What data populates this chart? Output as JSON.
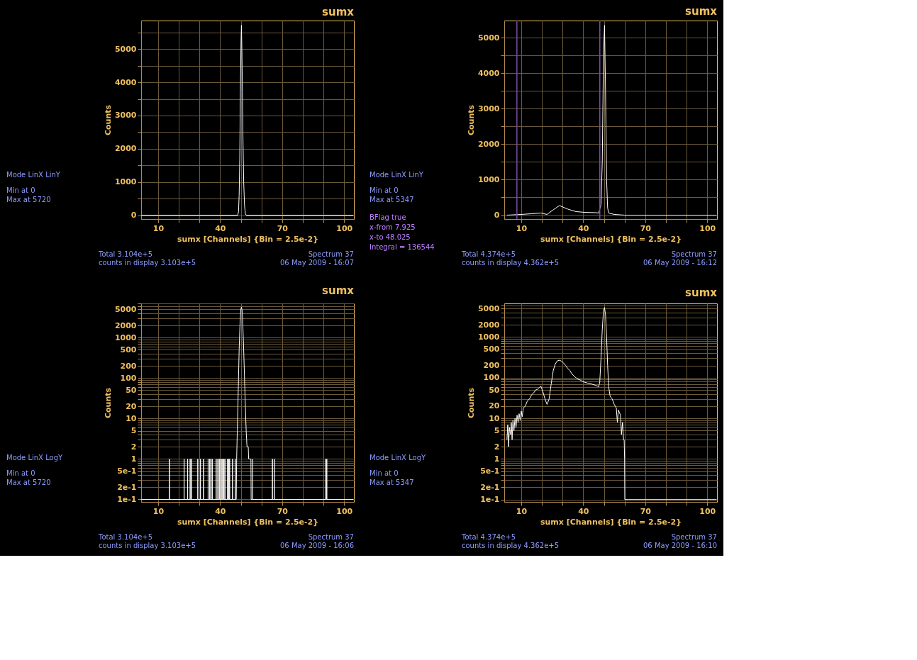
{
  "chart_data": [
    {
      "type": "line",
      "title": "sumx",
      "xlabel": "sumx [Channels] {Bin = 2.5e-2}",
      "ylabel": "Counts",
      "xlim": [
        1.8,
        104.7
      ],
      "xticks": [
        10,
        {
          "value": 20,
          "label": null
        },
        {
          "value": 30,
          "label": null
        },
        40,
        {
          "value": 50,
          "label": null
        },
        {
          "value": 60,
          "label": null
        },
        70,
        {
          "value": 80,
          "label": null
        },
        {
          "value": 90,
          "label": null
        },
        100
      ],
      "ylim": [
        -117,
        5860
      ],
      "yticks": [
        0,
        {
          "value": 500,
          "label": null
        },
        1000,
        {
          "value": 1500,
          "label": null
        },
        2000,
        {
          "value": 2500,
          "label": null
        },
        3000,
        {
          "value": 3500,
          "label": null
        },
        4000,
        {
          "value": 4500,
          "label": null
        },
        5000,
        {
          "value": 5500,
          "label": null
        }
      ],
      "grid": true,
      "marker": "none",
      "line_style": "solid",
      "series": [
        {
          "color": "#ffffff",
          "x": [
            1.9,
            48.5,
            48.9,
            49.2,
            49.5,
            49.8,
            50.1,
            50.3,
            50.5,
            50.8,
            51.1,
            51.4,
            51.8,
            52.2,
            52.6,
            104.5
          ],
          "values": [
            0,
            0,
            100,
            600,
            1700,
            3700,
            5200,
            5720,
            5100,
            3700,
            2100,
            1000,
            300,
            50,
            0,
            0
          ]
        }
      ],
      "annotations": [
        "Mode LinX LinY",
        "Min at 0",
        "Max at 5720",
        "Total 3.104e+5",
        "counts in display 3.103e+5",
        "Spectrum 37",
        "06 May 2009 - 16:07"
      ]
    },
    {
      "type": "line",
      "title": "sumx",
      "xlabel": "sumx [Channels] {Bin = 2.5e-2}",
      "ylabel": "Counts",
      "xlim": [
        1.8,
        104.7
      ],
      "xticks": [
        10,
        {
          "value": 20,
          "label": null
        },
        {
          "value": 30,
          "label": null
        },
        40,
        {
          "value": 50,
          "label": null
        },
        {
          "value": 60,
          "label": null
        },
        70,
        {
          "value": 80,
          "label": null
        },
        {
          "value": 90,
          "label": null
        },
        100
      ],
      "ylim": [
        -110,
        5480
      ],
      "yticks": [
        0,
        {
          "value": 500,
          "label": null
        },
        1000,
        {
          "value": 1500,
          "label": null
        },
        2000,
        {
          "value": 2500,
          "label": null
        },
        3000,
        {
          "value": 3500,
          "label": null
        },
        4000,
        {
          "value": 4500,
          "label": null
        },
        5000
      ],
      "grid": true,
      "marker": "none",
      "line_style": "solid",
      "ref_lines": [
        {
          "axis": "x",
          "value": 7.925,
          "color": "#7a4aa0"
        },
        {
          "axis": "x",
          "value": 48.025,
          "color": "#7a4aa0"
        }
      ],
      "series": [
        {
          "color": "#ffffff",
          "x": [
            3.1,
            10,
            15,
            19.5,
            22.5,
            25.5,
            28.5,
            32.5,
            36.5,
            40.5,
            46,
            47.5,
            48.6,
            49.2,
            49.8,
            50.3,
            50.8,
            51.3,
            51.8,
            52.3,
            55,
            60,
            60.1,
            104.5
          ],
          "values": [
            0,
            20,
            40,
            60,
            20,
            150,
            270,
            170,
            100,
            80,
            70,
            60,
            300,
            1500,
            4500,
            5347,
            3500,
            1000,
            200,
            60,
            20,
            0,
            0,
            0
          ]
        }
      ],
      "annotations": [
        "Mode LinX LinY",
        "Min at 0",
        "Max at 5347",
        "Total 4.374e+5",
        "counts in display 4.362e+5",
        "Spectrum 37",
        "06 May 2009 - 16:12",
        "BFlag true",
        "x-from 7.925",
        "x-to 48.025",
        "Integral = 136544"
      ]
    },
    {
      "type": "line",
      "title": "sumx",
      "xlabel": "sumx [Channels] {Bin = 2.5e-2}",
      "ylabel": "Counts",
      "log": "y",
      "xlim": [
        1.8,
        104.7
      ],
      "xticks": [
        10,
        {
          "value": 20,
          "label": null
        },
        {
          "value": 30,
          "label": null
        },
        40,
        {
          "value": 50,
          "label": null
        },
        {
          "value": 60,
          "label": null
        },
        70,
        {
          "value": 80,
          "label": null
        },
        {
          "value": 90,
          "label": null
        },
        100
      ],
      "ylim": [
        0.0866,
        7020
      ],
      "yticks": [
        {
          "value": 0.1,
          "label": "1e-1"
        },
        {
          "value": 0.2,
          "label": "2e-1"
        },
        {
          "value": 0.3,
          "label": null
        },
        {
          "value": 0.4,
          "label": null
        },
        {
          "value": 0.5,
          "label": "5e-1"
        },
        {
          "value": 0.6,
          "label": null
        },
        {
          "value": 0.7,
          "label": null
        },
        {
          "value": 0.8,
          "label": null
        },
        {
          "value": 0.9,
          "label": null
        },
        1,
        2,
        {
          "value": 3,
          "label": null
        },
        {
          "value": 4,
          "label": null
        },
        5,
        {
          "value": 6,
          "label": null
        },
        {
          "value": 7,
          "label": null
        },
        {
          "value": 8,
          "label": null
        },
        {
          "value": 9,
          "label": null
        },
        10,
        20,
        {
          "value": 30,
          "label": null
        },
        {
          "value": 40,
          "label": null
        },
        50,
        {
          "value": 60,
          "label": null
        },
        {
          "value": 70,
          "label": null
        },
        {
          "value": 80,
          "label": null
        },
        {
          "value": 90,
          "label": null
        },
        100,
        200,
        {
          "value": 300,
          "label": null
        },
        {
          "value": 400,
          "label": null
        },
        500,
        {
          "value": 600,
          "label": null
        },
        {
          "value": 700,
          "label": null
        },
        {
          "value": 800,
          "label": null
        },
        {
          "value": 900,
          "label": null
        },
        1000,
        2000,
        {
          "value": 3000,
          "label": null
        },
        {
          "value": 4000,
          "label": null
        },
        5000,
        {
          "value": 6000,
          "label": null
        },
        {
          "value": 7000,
          "label": null
        }
      ],
      "grid": true,
      "marker": "none",
      "line_style": "solid",
      "series": [
        {
          "color": "#ffffff",
          "x": [
            1.9,
            15.48,
            15.5,
            15.52,
            22.58,
            22.6,
            22.62,
            24.28,
            24.3,
            24.32,
            25.48,
            25.5,
            25.52,
            26.18,
            26.2,
            26.22,
            29.18,
            29.2,
            29.22,
            30.48,
            30.5,
            30.52,
            31.98,
            32,
            32.02,
            34.18,
            34.2,
            34.22,
            34.98,
            35,
            35.02,
            35.58,
            35.6,
            35.62,
            36.18,
            36.2,
            36.22,
            38.08,
            38.1,
            38.12,
            38.88,
            38.9,
            38.92,
            39.58,
            39.6,
            39.62,
            40.28,
            40.3,
            40.32,
            40.88,
            40.9,
            40.92,
            41.38,
            41.4,
            41.42,
            41.88,
            41.9,
            41.92,
            42.38,
            42.4,
            42.42,
            43.58,
            43.6,
            43.62,
            44.08,
            44.1,
            44.12,
            44.58,
            44.6,
            44.62,
            45.98,
            46,
            46.02,
            47.28,
            47.3,
            47.32,
            47.8,
            48.0,
            48.3,
            48.6,
            48.9,
            49.2,
            49.6,
            50.0,
            50.3,
            50.7,
            51.0,
            51.4,
            51.8,
            52.2,
            52.6,
            53.0,
            53.6,
            53.8,
            54.9,
            55.0,
            55.78,
            55.8,
            55.82,
            65.28,
            65.3,
            65.32,
            66.18,
            66.2,
            66.22,
            91.08,
            91.1,
            91.12,
            91.58,
            91.6,
            91.62,
            104.5
          ],
          "values": [
            0.1,
            0.1,
            1,
            0.1,
            0.1,
            1,
            0.1,
            0.1,
            1,
            0.1,
            0.1,
            1,
            0.1,
            0.1,
            1,
            0.1,
            0.1,
            1,
            0.1,
            0.1,
            1,
            0.1,
            0.1,
            1,
            0.1,
            0.1,
            1,
            0.1,
            0.1,
            1,
            0.1,
            0.1,
            1,
            0.1,
            0.1,
            1,
            0.1,
            0.1,
            1,
            0.1,
            0.1,
            1,
            0.1,
            0.1,
            1,
            0.1,
            0.1,
            1,
            0.1,
            0.1,
            1,
            0.1,
            0.1,
            1,
            0.1,
            0.1,
            1,
            0.1,
            0.1,
            1,
            0.1,
            0.1,
            1,
            0.1,
            0.1,
            1,
            0.1,
            0.1,
            1,
            0.1,
            0.1,
            1,
            0.1,
            0.1,
            1,
            0.1,
            0.1,
            1,
            5,
            20,
            100,
            500,
            2000,
            5000,
            5720,
            4500,
            2000,
            500,
            100,
            20,
            5,
            2,
            2,
            1,
            1,
            0.1,
            0.1,
            1,
            0.1,
            0.1,
            1,
            0.1,
            0.1,
            1,
            0.1,
            0.1,
            1,
            0.1,
            0.1,
            1,
            0.1,
            0.1
          ]
        }
      ],
      "annotations": [
        "Mode LinX LogY",
        "Min at 0",
        "Max at 5720",
        "Total 3.104e+5",
        "counts in display 3.103e+5",
        "Spectrum 37",
        "06 May 2009 - 16:06"
      ]
    },
    {
      "type": "line",
      "title": "sumx",
      "xlabel": "sumx [Channels] {Bin = 2.5e-2}",
      "ylabel": "Counts",
      "log": "y",
      "xlim": [
        1.8,
        104.7
      ],
      "xticks": [
        10,
        {
          "value": 20,
          "label": null
        },
        {
          "value": 30,
          "label": null
        },
        40,
        {
          "value": 50,
          "label": null
        },
        {
          "value": 60,
          "label": null
        },
        70,
        {
          "value": 80,
          "label": null
        },
        {
          "value": 90,
          "label": null
        },
        100
      ],
      "ylim": [
        0.0877,
        6740
      ],
      "yticks": [
        {
          "value": 0.1,
          "label": "1e-1"
        },
        {
          "value": 0.2,
          "label": "2e-1"
        },
        {
          "value": 0.3,
          "label": null
        },
        {
          "value": 0.4,
          "label": null
        },
        {
          "value": 0.5,
          "label": "5e-1"
        },
        {
          "value": 0.6,
          "label": null
        },
        {
          "value": 0.7,
          "label": null
        },
        {
          "value": 0.8,
          "label": null
        },
        {
          "value": 0.9,
          "label": null
        },
        1,
        2,
        {
          "value": 3,
          "label": null
        },
        {
          "value": 4,
          "label": null
        },
        5,
        {
          "value": 6,
          "label": null
        },
        {
          "value": 7,
          "label": null
        },
        {
          "value": 8,
          "label": null
        },
        {
          "value": 9,
          "label": null
        },
        10,
        20,
        {
          "value": 30,
          "label": null
        },
        {
          "value": 40,
          "label": null
        },
        50,
        {
          "value": 60,
          "label": null
        },
        {
          "value": 70,
          "label": null
        },
        {
          "value": 80,
          "label": null
        },
        {
          "value": 90,
          "label": null
        },
        100,
        200,
        {
          "value": 300,
          "label": null
        },
        {
          "value": 400,
          "label": null
        },
        500,
        {
          "value": 600,
          "label": null
        },
        {
          "value": 700,
          "label": null
        },
        {
          "value": 800,
          "label": null
        },
        {
          "value": 900,
          "label": null
        },
        1000,
        2000,
        {
          "value": 3000,
          "label": null
        },
        {
          "value": 4000,
          "label": null
        },
        5000,
        {
          "value": 6000,
          "label": null
        }
      ],
      "grid": true,
      "marker": "none",
      "line_style": "solid",
      "series": [
        {
          "color": "#ffffff",
          "x": [
            3.1,
            3.5,
            3.9,
            4.3,
            4.8,
            5.2,
            5.6,
            6.0,
            6.5,
            7.0,
            7.5,
            8.0,
            8.5,
            9.0,
            9.5,
            10,
            10.5,
            11,
            12,
            13,
            14,
            15,
            16,
            17,
            18,
            19.5,
            20.5,
            21.5,
            22.5,
            23.5,
            24.5,
            25.5,
            26.5,
            27.5,
            28.5,
            29.5,
            30.5,
            31.5,
            32.5,
            33.5,
            34.5,
            35.5,
            36.5,
            37.5,
            38.5,
            39.5,
            40.5,
            42,
            44,
            46,
            47.5,
            48.0,
            48.6,
            49.2,
            49.8,
            50.3,
            50.8,
            51.3,
            51.8,
            52.3,
            53,
            54,
            55,
            56,
            56.5,
            57,
            58,
            58.5,
            59,
            59.5,
            59.8,
            60.0,
            60.1,
            104.5
          ],
          "values": [
            3,
            7,
            2,
            6,
            4,
            8,
            3,
            9,
            5,
            10,
            6,
            12,
            8,
            13,
            9,
            15,
            11,
            18,
            20,
            27,
            30,
            38,
            42,
            50,
            52,
            62,
            45,
            30,
            22,
            30,
            70,
            150,
            220,
            260,
            270,
            255,
            230,
            200,
            170,
            150,
            125,
            110,
            100,
            92,
            88,
            82,
            78,
            74,
            70,
            65,
            60,
            80,
            300,
            1500,
            4500,
            5347,
            3500,
            1000,
            200,
            60,
            35,
            30,
            22,
            18,
            8,
            16,
            12,
            4,
            8,
            3,
            3,
            1,
            0.1,
            0.1
          ]
        }
      ],
      "annotations": [
        "Mode LinX LogY",
        "Min at 0",
        "Max at 5347",
        "Total 4.374e+5",
        "counts in display 4.362e+5",
        "Spectrum 37",
        "06 May 2009 - 16:10"
      ]
    }
  ]
}
